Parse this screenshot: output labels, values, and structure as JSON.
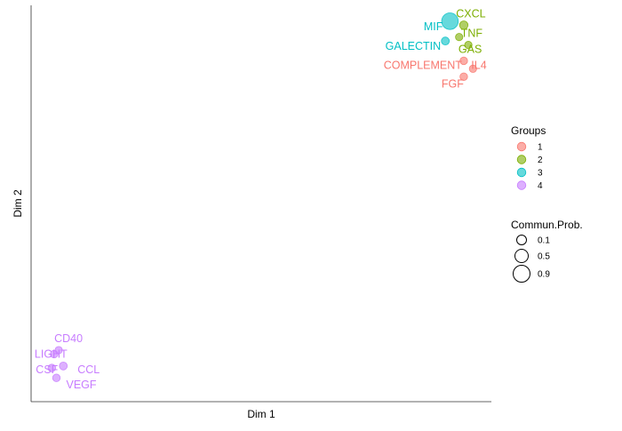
{
  "chart_data": {
    "type": "scatter",
    "xlabel": "Dim 1",
    "ylabel": "Dim 2",
    "grid": false,
    "legend_position": "right",
    "colors": {
      "1": "#F8766D",
      "2": "#7CAE00",
      "3": "#00BFC4",
      "4": "#C77CFF"
    },
    "points": [
      {
        "label": "CXCL",
        "x": 0.94,
        "y": 0.95,
        "group": "2",
        "prob": 0.2
      },
      {
        "label": "MIF",
        "x": 0.91,
        "y": 0.96,
        "group": "3",
        "prob": 0.9
      },
      {
        "label": "TNF",
        "x": 0.93,
        "y": 0.92,
        "group": "2",
        "prob": 0.1
      },
      {
        "label": "GALECTIN",
        "x": 0.9,
        "y": 0.91,
        "group": "3",
        "prob": 0.15
      },
      {
        "label": "GAS",
        "x": 0.95,
        "y": 0.9,
        "group": "2",
        "prob": 0.1
      },
      {
        "label": "COMPLEMENT",
        "x": 0.94,
        "y": 0.86,
        "group": "1",
        "prob": 0.12
      },
      {
        "label": "IL4",
        "x": 0.96,
        "y": 0.84,
        "group": "1",
        "prob": 0.1
      },
      {
        "label": "FGF",
        "x": 0.94,
        "y": 0.82,
        "group": "1",
        "prob": 0.12
      },
      {
        "label": "CD40",
        "x": 0.06,
        "y": 0.13,
        "group": "4",
        "prob": 0.1
      },
      {
        "label": "LIGHT",
        "x": 0.05,
        "y": 0.12,
        "group": "4",
        "prob": 0.12
      },
      {
        "label": "CCL",
        "x": 0.07,
        "y": 0.09,
        "group": "4",
        "prob": 0.15
      },
      {
        "label": "CSF",
        "x": 0.045,
        "y": 0.085,
        "group": "4",
        "prob": 0.12
      },
      {
        "label": "VEGF",
        "x": 0.055,
        "y": 0.06,
        "group": "4",
        "prob": 0.12
      }
    ],
    "legend_groups": {
      "title": "Groups",
      "items": [
        "1",
        "2",
        "3",
        "4"
      ]
    },
    "legend_size": {
      "title": "Commun.Prob.",
      "items": [
        {
          "label": "0.1",
          "value": 0.1
        },
        {
          "label": "0.5",
          "value": 0.5
        },
        {
          "label": "0.9",
          "value": 0.9
        }
      ]
    }
  }
}
